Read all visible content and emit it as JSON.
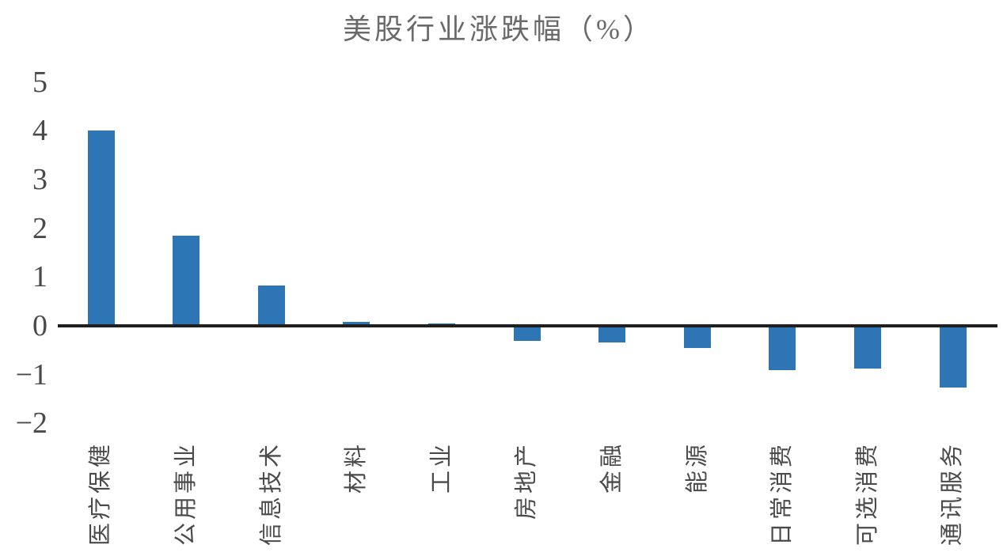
{
  "chart_data": {
    "type": "bar",
    "title": "美股行业涨跌幅（%）",
    "categories": [
      "医疗保健",
      "公用事业",
      "信息技术",
      "材料",
      "工业",
      "房地产",
      "金融",
      "能源",
      "日常消费",
      "可选消费",
      "通讯服务"
    ],
    "values": [
      4.0,
      1.85,
      0.82,
      0.08,
      0.05,
      -0.3,
      -0.34,
      -0.45,
      -0.9,
      -0.88,
      -1.26
    ],
    "xlabel": "",
    "ylabel": "",
    "ylim": [
      -2,
      5
    ],
    "y_ticks": [
      5,
      4,
      3,
      2,
      1,
      0,
      -1,
      -2
    ],
    "y_tick_labels": [
      "5",
      "4",
      "3",
      "2",
      "1",
      "0",
      "−1",
      "−2"
    ],
    "grid": false,
    "legend": false,
    "bar_color": "#2E75B6",
    "axis_line_color": "#1f1f1f",
    "title_color": "#6a6a6a",
    "tick_label_color": "#4a4a4a"
  }
}
